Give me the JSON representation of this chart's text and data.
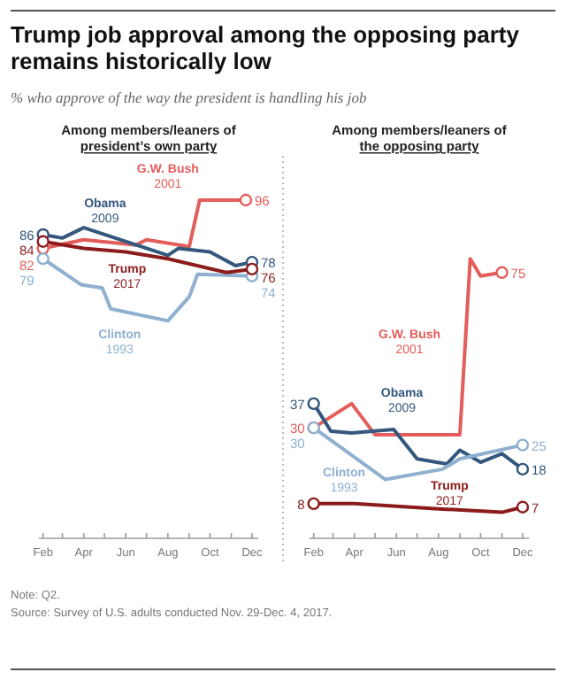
{
  "chart_data": [
    {
      "type": "other",
      "title": "Trump job approval among the opposing party remains historically low",
      "subtitle": "% who approve of the way the president is handling his job",
      "annotations": [
        "Note: Q2.",
        "Source: Survey of U.S. adults conducted Nov. 29-Dec. 4, 2017."
      ]
    },
    {
      "type": "line",
      "title": "Among members/leaners of president’s own party",
      "xlim": [
        "--01-26",
        "--12-10"
      ],
      "tick_labels": "x",
      "xticks": [
        {
          "value": "--02-01",
          "label": "Feb"
        },
        {
          "value": "--03-01",
          "label": null
        },
        {
          "value": "--04-01",
          "label": "Apr"
        },
        {
          "value": "--05-01",
          "label": null
        },
        {
          "value": "--06-01",
          "label": "Jun"
        },
        {
          "value": "--07-01",
          "label": null
        },
        {
          "value": "--08-01",
          "label": "Aug"
        },
        {
          "value": "--09-01",
          "label": null
        },
        {
          "value": "--10-01",
          "label": "Oct"
        },
        {
          "value": "--11-01",
          "label": null
        },
        {
          "value": "--12-01",
          "label": "Dec"
        }
      ],
      "series": [
        {
          "name": "G.W. Bush 2001",
          "color": "#e35d5b",
          "x": [
            "--02-01",
            "--04-01",
            "--06-16",
            "--07-01",
            "--09-01",
            "--09-16",
            "--11-22"
          ],
          "values": [
            82,
            84.5,
            83,
            84.5,
            82.5,
            96,
            96
          ],
          "value_labels": [
            "82",
            null,
            null,
            null,
            null,
            null,
            "96"
          ]
        },
        {
          "name": "Obama 2009",
          "color": "#34587d",
          "x": [
            "--02-01",
            "--03-01",
            "--04-01",
            "--08-01",
            "--08-16",
            "--10-01",
            "--11-07",
            "--12-01"
          ],
          "values": [
            86,
            85,
            88,
            80,
            82,
            81,
            77,
            78
          ],
          "value_labels": [
            "86",
            null,
            null,
            null,
            null,
            null,
            null,
            "78"
          ]
        },
        {
          "name": "Clinton 1993",
          "color": "#8fb0cf",
          "x": [
            "--02-01",
            "--03-28",
            "--04-28",
            "--05-10",
            "--08-01",
            "--09-01",
            "--09-13",
            "--12-01"
          ],
          "values": [
            79,
            71.5,
            70.5,
            64.5,
            61,
            68,
            74.5,
            74
          ],
          "value_labels": [
            "79",
            null,
            null,
            null,
            null,
            null,
            null,
            "74"
          ]
        },
        {
          "name": "Trump 2017",
          "color": "#8c1c1c",
          "x": [
            "--02-01",
            "--04-01",
            "--06-01",
            "--08-01",
            "--10-25",
            "--12-01"
          ],
          "values": [
            84,
            82,
            81,
            79,
            75,
            76
          ],
          "value_labels": [
            "84",
            null,
            null,
            null,
            null,
            "76"
          ]
        }
      ]
    },
    {
      "type": "line",
      "title": "Among members/leaners of the opposing party",
      "xlim": [
        "--01-26",
        "--12-10"
      ],
      "tick_labels": "x",
      "xticks": [
        {
          "value": "--02-01",
          "label": "Feb"
        },
        {
          "value": "--03-01",
          "label": null
        },
        {
          "value": "--04-01",
          "label": "Apr"
        },
        {
          "value": "--05-01",
          "label": null
        },
        {
          "value": "--06-01",
          "label": "Jun"
        },
        {
          "value": "--07-01",
          "label": null
        },
        {
          "value": "--08-01",
          "label": "Aug"
        },
        {
          "value": "--09-01",
          "label": null
        },
        {
          "value": "--10-01",
          "label": "Oct"
        },
        {
          "value": "--11-01",
          "label": null
        },
        {
          "value": "--12-01",
          "label": "Dec"
        }
      ],
      "series": [
        {
          "name": "G.W. Bush 2001",
          "color": "#e35d5b",
          "x": [
            "--02-01",
            "--03-28",
            "--05-01",
            "--09-01",
            "--09-16",
            "--10-01",
            "--11-01"
          ],
          "values": [
            30,
            37,
            28,
            28,
            79,
            74,
            75
          ],
          "value_labels": [
            "30",
            null,
            null,
            null,
            null,
            null,
            "75"
          ]
        },
        {
          "name": "Obama 2009",
          "color": "#34587d",
          "x": [
            "--02-01",
            "--02-26",
            "--03-28",
            "--05-28",
            "--07-01",
            "--08-13",
            "--09-01",
            "--10-01",
            "--11-01",
            "--12-01"
          ],
          "values": [
            37,
            29,
            28.5,
            29.5,
            21,
            19.5,
            23.5,
            20,
            22.5,
            18
          ],
          "value_labels": [
            "37",
            null,
            null,
            null,
            null,
            null,
            null,
            null,
            null,
            "18"
          ]
        },
        {
          "name": "Clinton 1993",
          "color": "#8fb0cf",
          "x": [
            "--02-01",
            "--05-16",
            "--08-07",
            "--09-01",
            "--12-01"
          ],
          "values": [
            30,
            15,
            18,
            21,
            25
          ],
          "value_labels": [
            "30",
            null,
            null,
            null,
            "25"
          ]
        },
        {
          "name": "Trump 2017",
          "color": "#8c1c1c",
          "x": [
            "--02-01",
            "--04-01",
            "--08-01",
            "--11-01",
            "--12-01"
          ],
          "values": [
            8,
            8,
            6.5,
            5.5,
            7
          ],
          "value_labels": [
            "8",
            null,
            null,
            null,
            "7"
          ]
        }
      ]
    }
  ]
}
